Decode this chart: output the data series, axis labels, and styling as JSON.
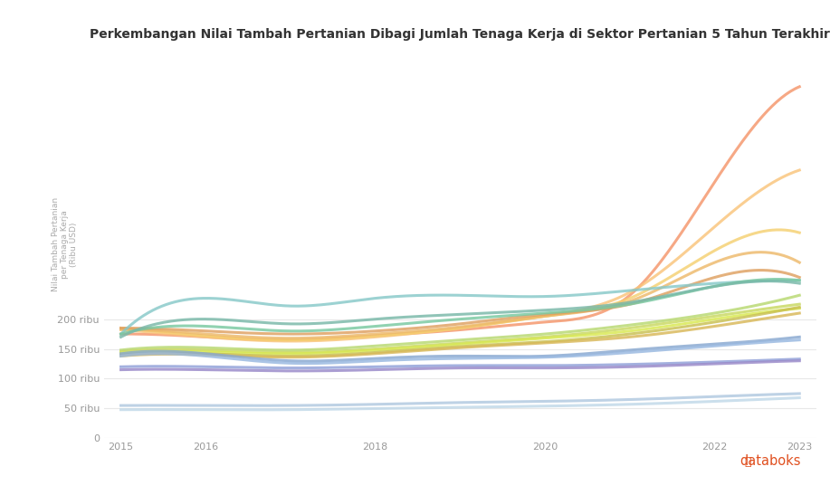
{
  "title": "Perkembangan Nilai Tambah Pertanian Dibagi Jumlah Tenaga Kerja di Sektor Pertanian 5 Tahun Terakhir",
  "years": [
    2015,
    2016,
    2017,
    2018,
    2019,
    2020,
    2021,
    2022,
    2023
  ],
  "xticks": [
    2015,
    2016,
    2018,
    2020,
    2022,
    2023
  ],
  "series": [
    {
      "color": "#F4956A",
      "values": [
        175000,
        170000,
        165000,
        172000,
        182000,
        195000,
        240000,
        430000,
        590000
      ]
    },
    {
      "color": "#F9C47A",
      "values": [
        182000,
        170000,
        163000,
        170000,
        185000,
        205000,
        245000,
        355000,
        450000
      ]
    },
    {
      "color": "#F5D070",
      "values": [
        185000,
        172000,
        165000,
        172000,
        185000,
        205000,
        235000,
        315000,
        345000
      ]
    },
    {
      "color": "#EDB96A",
      "values": [
        183000,
        175000,
        168000,
        175000,
        187000,
        205000,
        230000,
        295000,
        295000
      ]
    },
    {
      "color": "#DFA060",
      "values": [
        185000,
        180000,
        175000,
        180000,
        192000,
        208000,
        225000,
        270000,
        270000
      ]
    },
    {
      "color": "#87C8C8",
      "values": [
        175000,
        235000,
        222000,
        235000,
        240000,
        238000,
        248000,
        260000,
        265000
      ]
    },
    {
      "color": "#78C8A0",
      "values": [
        175000,
        188000,
        180000,
        188000,
        200000,
        210000,
        225000,
        255000,
        265000
      ]
    },
    {
      "color": "#78B8A8",
      "values": [
        170000,
        200000,
        192000,
        200000,
        208000,
        215000,
        228000,
        255000,
        260000
      ]
    },
    {
      "color": "#B8D870",
      "values": [
        148000,
        152000,
        148000,
        155000,
        165000,
        175000,
        190000,
        210000,
        240000
      ]
    },
    {
      "color": "#C8D860",
      "values": [
        145000,
        148000,
        144000,
        150000,
        160000,
        170000,
        185000,
        205000,
        225000
      ]
    },
    {
      "color": "#D8E850",
      "values": [
        143000,
        145000,
        142000,
        148000,
        158000,
        168000,
        180000,
        200000,
        218000
      ]
    },
    {
      "color": "#C8C050",
      "values": [
        140000,
        142000,
        138000,
        144000,
        154000,
        162000,
        175000,
        195000,
        220000
      ]
    },
    {
      "color": "#D8B858",
      "values": [
        138000,
        140000,
        136000,
        142000,
        152000,
        160000,
        170000,
        188000,
        210000
      ]
    },
    {
      "color": "#88A8D0",
      "values": [
        142000,
        142000,
        130000,
        134000,
        138000,
        138000,
        148000,
        158000,
        170000
      ]
    },
    {
      "color": "#98B8E0",
      "values": [
        138000,
        138000,
        126000,
        130000,
        134000,
        136000,
        144000,
        155000,
        165000
      ]
    },
    {
      "color": "#90A0D8",
      "values": [
        120000,
        120000,
        118000,
        120000,
        122000,
        122000,
        124000,
        128000,
        133000
      ]
    },
    {
      "color": "#9888C8",
      "values": [
        115000,
        115000,
        113000,
        115000,
        118000,
        118000,
        120000,
        125000,
        130000
      ]
    },
    {
      "color": "#B0C8E0",
      "values": [
        55000,
        55000,
        55000,
        57000,
        60000,
        62000,
        65000,
        70000,
        75000
      ]
    },
    {
      "color": "#C0D8E8",
      "values": [
        48000,
        48000,
        48000,
        50000,
        52000,
        54000,
        57000,
        62000,
        68000
      ]
    }
  ],
  "ylim": [
    0,
    650000
  ],
  "yticks": [
    0,
    50000,
    100000,
    150000,
    200000
  ],
  "ytick_labels": [
    "0",
    "50 ribu",
    "100 ribu",
    "150 ribu",
    "200 ribu"
  ],
  "background_color": "#ffffff",
  "grid_color": "#e8e8e8",
  "title_fontsize": 10,
  "axis_fontsize": 8,
  "ylabel_text": "Nilai Tambah Pertanian\nper Tenaga Kerja (Ribu USD)"
}
